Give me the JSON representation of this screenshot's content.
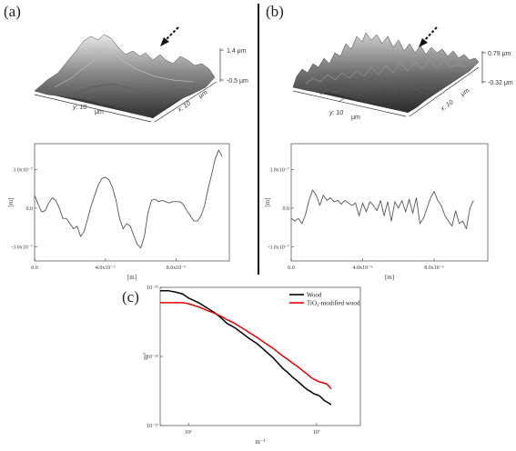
{
  "panels": {
    "a": {
      "label": "(a)",
      "surface": {
        "z_max_label": "1.4 μm",
        "z_min_label": "-0.5 μm",
        "y_label": "y: 10",
        "y_unit": "μm",
        "x_label": "x: 10",
        "x_unit": "μm"
      }
    },
    "b": {
      "label": "(b)",
      "surface": {
        "z_max_label": "0.79 μm",
        "z_min_label": "-0.32 μm",
        "y_label": "y: 10",
        "y_unit": "μm",
        "x_label": "x: 10",
        "x_unit": "μm"
      }
    },
    "c": {
      "label": "(c)"
    }
  },
  "chart_data": [
    {
      "id": "profile_a",
      "type": "line",
      "xlabel": "[m]",
      "ylabel": "[m]",
      "xlim": [
        0,
        1.1e-05
      ],
      "ylim": [
        -4.1e-07,
        5e-07
      ],
      "xticks": [
        0,
        4e-06,
        8e-06
      ],
      "xtick_labels": [
        "0.0",
        "4.0x10⁻⁶",
        "8.0x10⁻⁶"
      ],
      "yticks": [
        3e-07,
        0,
        -3e-07
      ],
      "ytick_labels": [
        "3.0x10⁻⁷",
        "0.0",
        "-3.0x10⁻⁷"
      ],
      "series": [
        {
          "color": "#555555",
          "x": [
            0,
            2e-07,
            4e-07,
            6e-07,
            8e-07,
            1e-06,
            1.2e-06,
            1.4e-06,
            1.6e-06,
            1.8e-06,
            2e-06,
            2.2e-06,
            2.4e-06,
            2.6e-06,
            2.8e-06,
            3e-06,
            3.2e-06,
            3.4e-06,
            3.6e-06,
            3.8e-06,
            4e-06,
            4.2e-06,
            4.4e-06,
            4.6e-06,
            4.8e-06,
            5e-06,
            5.2e-06,
            5.4e-06,
            5.6e-06,
            5.8e-06,
            6e-06,
            6.2e-06,
            6.4e-06,
            6.6e-06,
            6.8e-06,
            7e-06,
            7.2e-06,
            7.4e-06,
            7.6e-06,
            7.8e-06,
            8e-06,
            8.2e-06,
            8.4e-06,
            8.6e-06,
            8.8e-06,
            9e-06,
            9.2e-06,
            9.4e-06,
            9.6e-06,
            9.8e-06,
            1e-05,
            1.02e-05,
            1.04e-05,
            1.06e-05
          ],
          "y": [
            1e-07,
            3e-08,
            -3e-08,
            -2e-08,
            4e-08,
            8e-08,
            6e-08,
            0,
            -8e-08,
            -8e-08,
            -1.2e-07,
            -1.6e-07,
            -1.4e-07,
            -2.2e-07,
            -1.8e-07,
            -8e-08,
            2e-08,
            1e-07,
            1.8e-07,
            2.3e-07,
            2.4e-07,
            2.2e-07,
            1.6e-07,
            6e-08,
            -8e-08,
            -1.6e-07,
            -1.2e-07,
            -1.4e-07,
            -2.1e-07,
            -2.8e-07,
            -3.1e-07,
            -2.2e-07,
            -4e-08,
            6e-08,
            7e-08,
            5e-08,
            6e-08,
            5e-08,
            4e-08,
            5e-08,
            5e-08,
            5e-08,
            3e-08,
            -2e-08,
            -6e-08,
            -1e-07,
            -1e-07,
            -6e-08,
            2e-08,
            1.5e-07,
            2.6e-07,
            3.8e-07,
            4.5e-07,
            4e-07
          ]
        }
      ]
    },
    {
      "id": "profile_b",
      "type": "line",
      "xlabel": "[m]",
      "ylabel": "[m]",
      "xlim": [
        0,
        1.1e-05
      ],
      "ylim": [
        -4.1e-07,
        5e-07
      ],
      "xticks": [
        0,
        4e-06,
        8e-06
      ],
      "xtick_labels": [
        "0.0",
        "4.0x10⁻⁶",
        "8.0x10⁻⁶"
      ],
      "yticks": [
        3e-07,
        0,
        -3e-07
      ],
      "ytick_labels": [
        "3.0x10⁻⁷",
        "0.0",
        "-3.0x10⁻⁷"
      ],
      "series": [
        {
          "color": "#555555",
          "x": [
            0,
            2e-07,
            4e-07,
            6e-07,
            8e-07,
            1e-06,
            1.2e-06,
            1.4e-06,
            1.6e-06,
            1.8e-06,
            2e-06,
            2.2e-06,
            2.4e-06,
            2.6e-06,
            2.8e-06,
            3e-06,
            3.2e-06,
            3.4e-06,
            3.6e-06,
            3.8e-06,
            4e-06,
            4.2e-06,
            4.4e-06,
            4.6e-06,
            4.8e-06,
            5e-06,
            5.2e-06,
            5.4e-06,
            5.6e-06,
            5.8e-06,
            6e-06,
            6.2e-06,
            6.4e-06,
            6.6e-06,
            6.8e-06,
            7e-06,
            7.2e-06,
            7.4e-06,
            7.6e-06,
            7.8e-06,
            8e-06,
            8.2e-06,
            8.4e-06,
            8.6e-06,
            8.8e-06,
            9e-06,
            9.2e-06,
            9.4e-06,
            9.6e-06,
            9.8e-06,
            1e-05,
            1.02e-05
          ],
          "y": [
            -8e-08,
            -1e-07,
            -8e-08,
            -1.2e-07,
            -5e-08,
            6e-08,
            1.4e-07,
            1e-07,
            2e-08,
            1e-07,
            6e-08,
            8e-08,
            5e-08,
            6e-08,
            3e-08,
            6e-08,
            4e-08,
            2e-08,
            4e-08,
            -6e-08,
            4e-08,
            -3e-08,
            5e-08,
            2e-08,
            -2e-08,
            6e-08,
            -6e-08,
            5e-08,
            -1e-07,
            5e-08,
            0,
            6e-08,
            -3e-08,
            7e-08,
            -4e-08,
            8e-08,
            -1.2e-07,
            -8e-08,
            0,
            8e-08,
            1.3e-07,
            6e-08,
            2e-08,
            -6e-08,
            -1e-07,
            -1.4e-07,
            -2e-08,
            -1.2e-07,
            -1e-07,
            -1.6e-07,
            0,
            6e-08
          ]
        }
      ]
    },
    {
      "id": "psd",
      "type": "line",
      "xlabel": "m⁻¹",
      "ylabel": "m³",
      "log_x": true,
      "log_y": true,
      "xlim": [
        600000.0,
        22000000.0
      ],
      "ylim": [
        1e-27,
        1e-25
      ],
      "xticks": [
        1000000.0,
        10000000.0
      ],
      "xtick_labels": [
        "10⁶",
        "10⁷"
      ],
      "yticks": [
        1e-25,
        1e-26,
        1e-27
      ],
      "ytick_labels": [
        "10⁻²⁵",
        "10⁻²⁶",
        "10⁻²⁷"
      ],
      "legend": "top-right",
      "series": [
        {
          "name": "Wood",
          "color": "#000000",
          "x": [
            600000.0,
            700000.0,
            800000.0,
            900000.0,
            1000000.0,
            1200000.0,
            1400000.0,
            1600000.0,
            1800000.0,
            2000000.0,
            2300000.0,
            2600000.0,
            3000000.0,
            3400000.0,
            3800000.0,
            4200000.0,
            4600000.0,
            5000000.0,
            5500000.0,
            6000000.0,
            6500000.0,
            7000000.0,
            7500000.0,
            8000000.0,
            8500000.0,
            9000000.0,
            9500000.0,
            10000000.0,
            10500000.0,
            11000000.0,
            11500000.0,
            12000000.0,
            12500000.0,
            13000000.0
          ],
          "y": [
            8.9e-26,
            8.9e-26,
            8.5e-26,
            8e-26,
            7e-26,
            6e-26,
            5e-26,
            4.3e-26,
            3.6e-26,
            3e-26,
            2.6e-26,
            2.2e-26,
            1.8e-26,
            1.55e-26,
            1.3e-26,
            1.1e-26,
            9.5e-27,
            8e-27,
            6.6e-27,
            5.8e-27,
            5e-27,
            4.5e-27,
            4e-27,
            3.6e-27,
            3.3e-27,
            3.1e-27,
            2.9e-27,
            2.8e-27,
            2.7e-27,
            2.5e-27,
            2.3e-27,
            2.2e-27,
            2.1e-27,
            2e-27
          ]
        },
        {
          "name": "TiO₂-modified wood",
          "color": "#e60000",
          "x": [
            600000.0,
            700000.0,
            800000.0,
            900000.0,
            1000000.0,
            1200000.0,
            1400000.0,
            1600000.0,
            1800000.0,
            2000000.0,
            2300000.0,
            2600000.0,
            3000000.0,
            3400000.0,
            3800000.0,
            4200000.0,
            4600000.0,
            5000000.0,
            5500000.0,
            6000000.0,
            6500000.0,
            7000000.0,
            7500000.0,
            8000000.0,
            8500000.0,
            9000000.0,
            9500000.0,
            10000000.0,
            10500000.0,
            11000000.0,
            11500000.0,
            12000000.0,
            12500000.0,
            13000000.0
          ],
          "y": [
            6e-26,
            6e-26,
            6e-26,
            6e-26,
            5.8e-26,
            5.2e-26,
            4.6e-26,
            4.2e-26,
            3.8e-26,
            3.4e-26,
            3e-26,
            2.6e-26,
            2.2e-26,
            1.9e-26,
            1.65e-26,
            1.45e-26,
            1.3e-26,
            1.15e-26,
            1e-26,
            9e-27,
            8e-27,
            7.3e-27,
            6.6e-27,
            6e-27,
            5.5e-27,
            5e-27,
            4.7e-27,
            4.5e-27,
            4.3e-27,
            4.2e-27,
            4.1e-27,
            4e-27,
            3.7e-27,
            3.4e-27
          ]
        }
      ]
    }
  ]
}
